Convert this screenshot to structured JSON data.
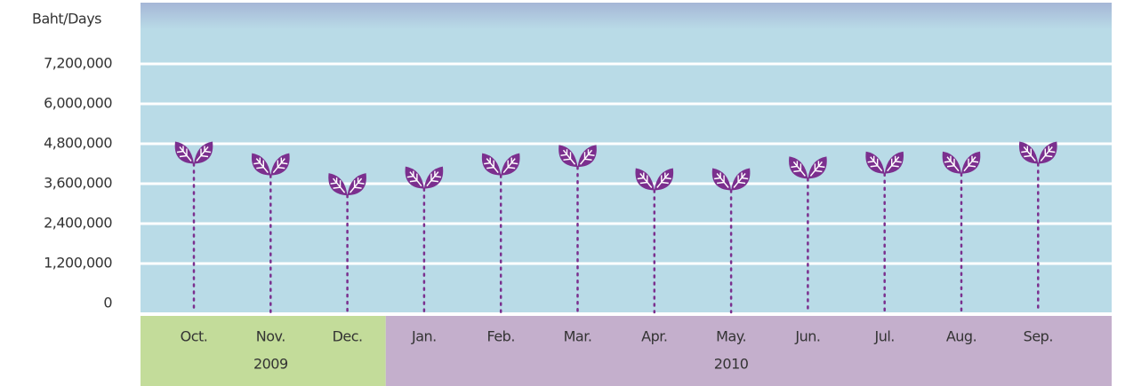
{
  "chart_data": {
    "type": "lollipop",
    "y_label": "Baht/Days",
    "groups": [
      {
        "label": "2009",
        "color": "#c3dc9a",
        "categories": [
          "Oct.",
          "Nov.",
          "Dec."
        ]
      },
      {
        "label": "2010",
        "color": "#c4afcc",
        "categories": [
          "Jan.",
          "Feb.",
          "Mar.",
          "Apr.",
          "May.",
          "Jun.",
          "Jul.",
          "Aug.",
          "Sep."
        ]
      }
    ],
    "values": [
      4200000,
      3850000,
      3250000,
      3450000,
      3850000,
      4100000,
      3400000,
      3400000,
      3750000,
      3900000,
      3900000,
      4200000
    ],
    "color": "#7b2f8e",
    "ylim": [
      0,
      9000000
    ],
    "yticks": [
      {
        "value": 0,
        "label": "0"
      },
      {
        "value": 1200000,
        "label": "1,200,000"
      },
      {
        "value": 2400000,
        "label": "2,400,000"
      },
      {
        "value": 3600000,
        "label": "3,600,000"
      },
      {
        "value": 4800000,
        "label": "4,800,000"
      },
      {
        "value": 6000000,
        "label": "6,000,000"
      },
      {
        "value": 7200000,
        "label": "7,200,000"
      }
    ],
    "grid": true
  }
}
